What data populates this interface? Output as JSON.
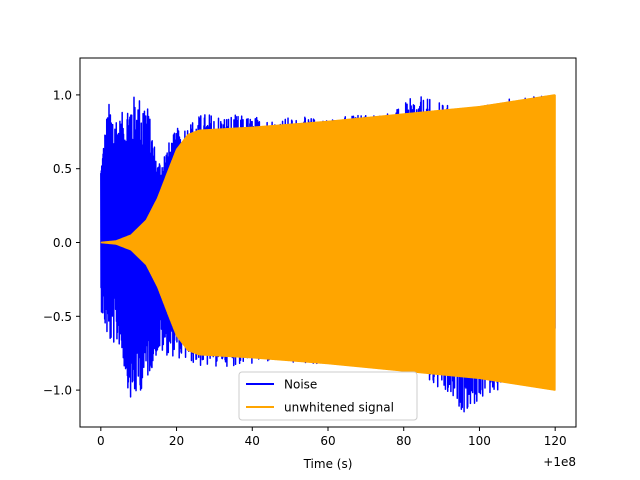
{
  "chart_data": {
    "type": "line",
    "title": "",
    "xlabel": "Time (s)",
    "ylabel": "",
    "x_offset_label": "+1e8",
    "xlim": [
      -5.5,
      125.5
    ],
    "ylim": [
      -1.25,
      1.25
    ],
    "x_ticks": [
      0,
      20,
      40,
      60,
      80,
      100,
      120
    ],
    "y_ticks": [
      -1.0,
      -0.5,
      0.0,
      0.5,
      1.0
    ],
    "x_tick_labels": [
      "0",
      "20",
      "40",
      "60",
      "80",
      "100",
      "120"
    ],
    "y_tick_labels": [
      "−1.0",
      "−0.5",
      "0.0",
      "0.5",
      "1.0"
    ],
    "grid": false,
    "legend_position": "lower center",
    "series": [
      {
        "name": "Noise",
        "color": "#0000ff",
        "style": "dense oscillation",
        "x_range": [
          0,
          120
        ],
        "envelope": [
          {
            "x": 0,
            "upper": 0.55,
            "lower": -0.45
          },
          {
            "x": 2,
            "upper": 0.95,
            "lower": -0.68
          },
          {
            "x": 5,
            "upper": 0.85,
            "lower": -0.7
          },
          {
            "x": 8,
            "upper": 1.0,
            "lower": -1.1
          },
          {
            "x": 12,
            "upper": 0.98,
            "lower": -0.95
          },
          {
            "x": 15,
            "upper": 0.55,
            "lower": -0.75
          },
          {
            "x": 20,
            "upper": 0.77,
            "lower": -0.78
          },
          {
            "x": 27,
            "upper": 0.88,
            "lower": -0.85
          },
          {
            "x": 45,
            "upper": 0.85,
            "lower": -0.82
          },
          {
            "x": 60,
            "upper": 0.85,
            "lower": -0.83
          },
          {
            "x": 78,
            "upper": 0.9,
            "lower": -0.86
          },
          {
            "x": 83,
            "upper": 1.0,
            "lower": -0.89
          },
          {
            "x": 96,
            "upper": 0.9,
            "lower": -1.15
          },
          {
            "x": 108,
            "upper": 0.98,
            "lower": -0.95
          },
          {
            "x": 120,
            "upper": 1.0,
            "lower": -1.0
          }
        ]
      },
      {
        "name": "unwhitened signal",
        "color": "#ffa500",
        "style": "dense oscillation (chirp)",
        "x_range": [
          0,
          120
        ],
        "envelope": [
          {
            "x": 0,
            "amplitude": 0.0
          },
          {
            "x": 4,
            "amplitude": 0.01
          },
          {
            "x": 8,
            "amplitude": 0.05
          },
          {
            "x": 12,
            "amplitude": 0.15
          },
          {
            "x": 15,
            "amplitude": 0.3
          },
          {
            "x": 18,
            "amplitude": 0.5
          },
          {
            "x": 20,
            "amplitude": 0.63
          },
          {
            "x": 23,
            "amplitude": 0.73
          },
          {
            "x": 26,
            "amplitude": 0.76
          },
          {
            "x": 40,
            "amplitude": 0.78
          },
          {
            "x": 60,
            "amplitude": 0.82
          },
          {
            "x": 80,
            "amplitude": 0.87
          },
          {
            "x": 100,
            "amplitude": 0.92
          },
          {
            "x": 120,
            "amplitude": 1.0
          }
        ]
      }
    ]
  }
}
